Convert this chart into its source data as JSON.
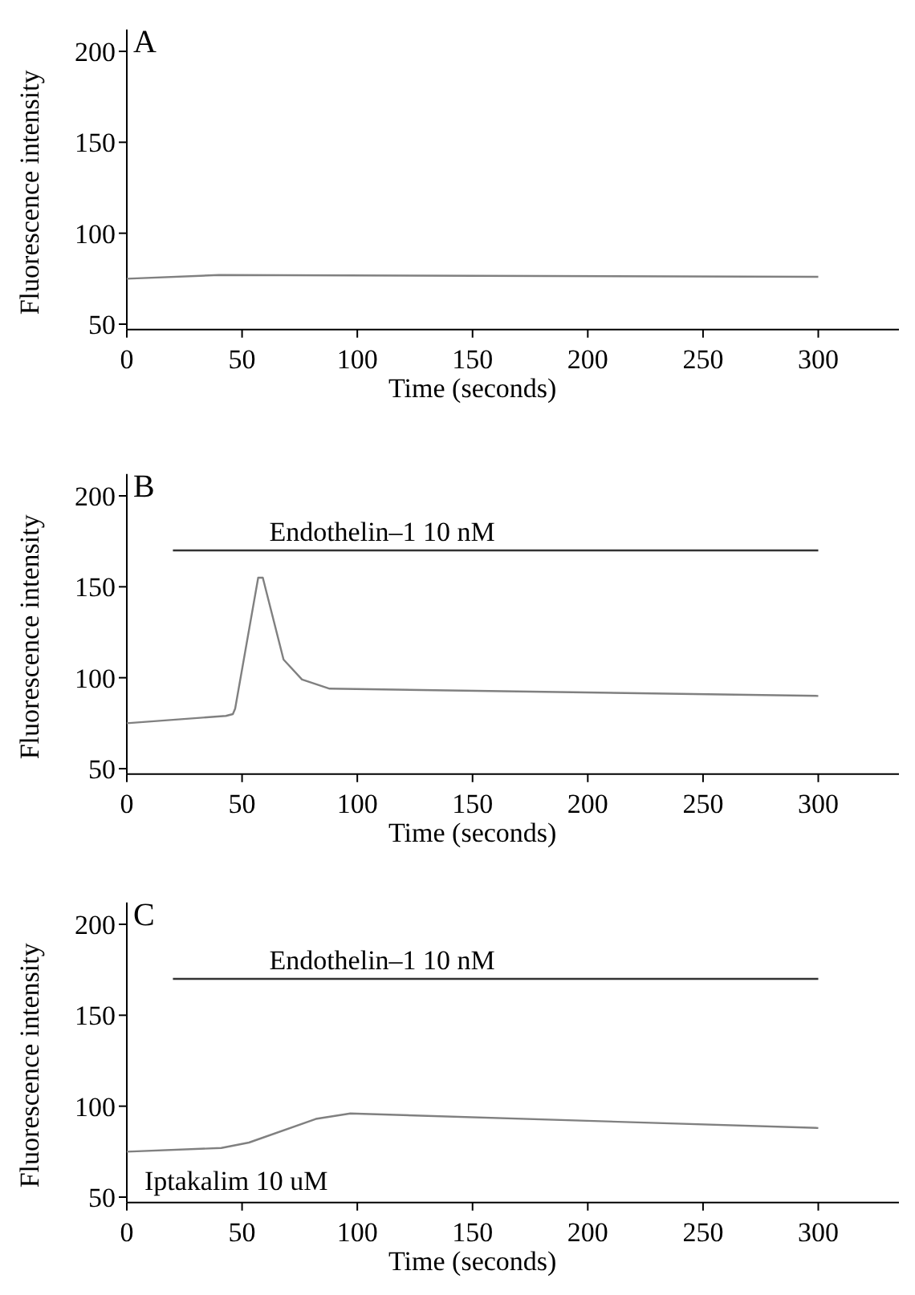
{
  "chart_data": [
    {
      "type": "line",
      "title": "A",
      "xlabel": "Time (seconds)",
      "ylabel": "Fluorescence intensity",
      "xlim": [
        0,
        335
      ],
      "ylim": [
        47,
        212
      ],
      "xticks": [
        0,
        50,
        100,
        150,
        200,
        250,
        300
      ],
      "yticks": [
        50,
        100,
        150,
        200
      ],
      "grid": false,
      "series": [
        {
          "color": "#808080",
          "x": [
            0,
            40,
            300
          ],
          "values": [
            75,
            77,
            76
          ]
        }
      ]
    },
    {
      "type": "line",
      "title": "B",
      "xlabel": "Time (seconds)",
      "ylabel": "Fluorescence intensity",
      "xlim": [
        0,
        335
      ],
      "ylim": [
        47,
        212
      ],
      "xticks": [
        0,
        50,
        100,
        150,
        200,
        250,
        300
      ],
      "yticks": [
        50,
        100,
        150,
        200
      ],
      "grid": false,
      "series": [
        {
          "name": "Endothelin–1 10 nM",
          "color": "#333333",
          "x": [
            20,
            300
          ],
          "values": [
            170,
            170
          ]
        },
        {
          "color": "#808080",
          "x": [
            0,
            43,
            46,
            47,
            57,
            59,
            68,
            76,
            88,
            300
          ],
          "values": [
            75,
            79,
            80,
            83,
            155,
            155,
            110,
            99,
            94,
            90
          ]
        }
      ]
    },
    {
      "type": "line",
      "title": "C",
      "xlabel": "Time (seconds)",
      "ylabel": "Fluorescence intensity",
      "xlim": [
        0,
        335
      ],
      "ylim": [
        47,
        212
      ],
      "xticks": [
        0,
        50,
        100,
        150,
        200,
        250,
        300
      ],
      "yticks": [
        50,
        100,
        150,
        200
      ],
      "grid": false,
      "annotations": [
        "Iptakalim 10 uM"
      ],
      "series": [
        {
          "name": "Endothelin–1 10 nM",
          "color": "#333333",
          "x": [
            20,
            300
          ],
          "values": [
            170,
            170
          ]
        },
        {
          "color": "#808080",
          "x": [
            0,
            41,
            53,
            82,
            97,
            300
          ],
          "values": [
            75,
            77,
            80,
            93,
            96,
            88
          ]
        }
      ]
    }
  ]
}
